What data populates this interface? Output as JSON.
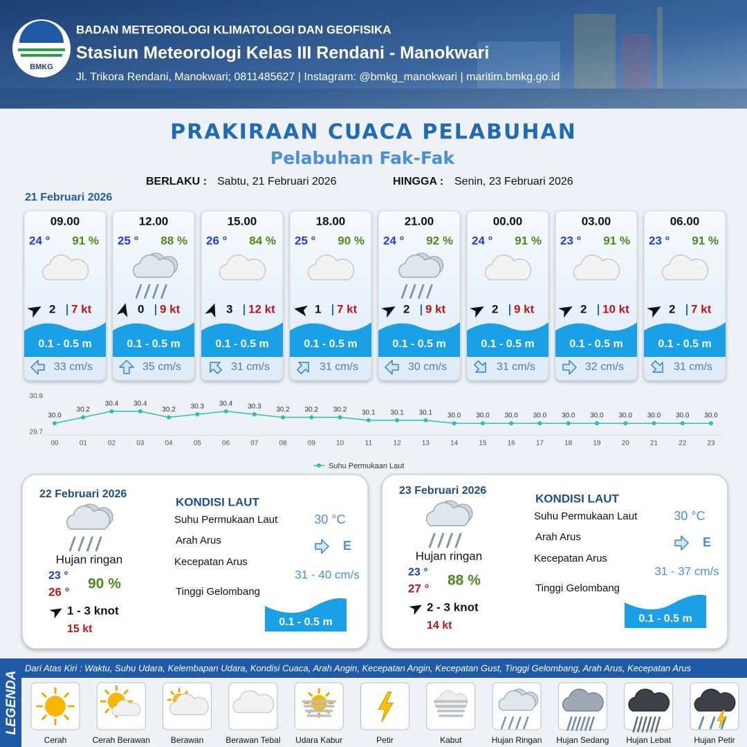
{
  "header": {
    "logo": "BMKG",
    "organization": "BADAN METEOROLOGI KLIMATOLOGI DAN GEOFISIKA",
    "station": "Stasiun Meteorologi Kelas III Rendani - Manokwari",
    "address": "Jl. Trikora Rendani, Manokwari; 0811485627 | Instagram: @bmkg_manokwari | maritim.bmkg.go.id"
  },
  "title": "PRAKIRAAN CUACA PELABUHAN",
  "subtitle": "Pelabuhan Fak-Fak",
  "validity": {
    "from_label": "BERLAKU :",
    "from": "Sabtu, 21 Februari 2026",
    "to_label": "HINGGA :",
    "to": "Senin, 23 Februari 2026"
  },
  "day1_date": "21 Februari 2026",
  "forecasts": [
    {
      "time": "09.00",
      "temp": "24 °",
      "humidity": "91 %",
      "condition": "Berawan Tebal",
      "wind_dir": 60,
      "wind_speed": 2,
      "gust": "7 kt",
      "wave": "0.1 - 0.5 m",
      "current_dir": 270,
      "current_speed": "33 cm/s"
    },
    {
      "time": "12.00",
      "temp": "25 °",
      "humidity": "88 %",
      "condition": "Hujan Ringan",
      "wind_dir": 15,
      "wind_speed": 0,
      "gust": "9 kt",
      "wave": "0.1 - 0.5 m",
      "current_dir": 0,
      "current_speed": "35 cm/s"
    },
    {
      "time": "15.00",
      "temp": "26 °",
      "humidity": "84 %",
      "condition": "Berawan Tebal",
      "wind_dir": 20,
      "wind_speed": 3,
      "gust": "12 kt",
      "wave": "0.1 - 0.5 m",
      "current_dir": 315,
      "current_speed": "31 cm/s"
    },
    {
      "time": "18.00",
      "temp": "25 °",
      "humidity": "90 %",
      "condition": "Berawan Tebal",
      "wind_dir": 280,
      "wind_speed": 1,
      "gust": "7 kt",
      "wave": "0.1 - 0.5 m",
      "current_dir": 45,
      "current_speed": "31 cm/s"
    },
    {
      "time": "21.00",
      "temp": "24 °",
      "humidity": "92 %",
      "condition": "Hujan Ringan",
      "wind_dir": 60,
      "wind_speed": 2,
      "gust": "9 kt",
      "wave": "0.1 - 0.5 m",
      "current_dir": 270,
      "current_speed": "30 cm/s"
    },
    {
      "time": "00.00",
      "temp": "24 °",
      "humidity": "91 %",
      "condition": "Berawan Tebal",
      "wind_dir": 60,
      "wind_speed": 2,
      "gust": "9 kt",
      "wave": "0.1 - 0.5 m",
      "current_dir": 135,
      "current_speed": "31 cm/s"
    },
    {
      "time": "03.00",
      "temp": "23 °",
      "humidity": "91 %",
      "condition": "Berawan Tebal",
      "wind_dir": 60,
      "wind_speed": 2,
      "gust": "10 kt",
      "wave": "0.1 - 0.5 m",
      "current_dir": 90,
      "current_speed": "32 cm/s"
    },
    {
      "time": "06.00",
      "temp": "23 °",
      "humidity": "91 %",
      "condition": "Berawan Tebal",
      "wind_dir": 60,
      "wind_speed": 2,
      "gust": "7 kt",
      "wave": "0.1 - 0.5 m",
      "current_dir": 135,
      "current_speed": "31 cm/s"
    }
  ],
  "chart_data": {
    "type": "line",
    "categories": [
      "00",
      "01",
      "02",
      "03",
      "04",
      "05",
      "06",
      "07",
      "08",
      "09",
      "10",
      "11",
      "12",
      "13",
      "14",
      "15",
      "16",
      "17",
      "18",
      "19",
      "20",
      "21",
      "22",
      "23"
    ],
    "series": [
      {
        "name": "Suhu Permukaan Laut",
        "color": "#2bbfb0",
        "values": [
          30.0,
          30.2,
          30.4,
          30.4,
          30.2,
          30.3,
          30.4,
          30.3,
          30.2,
          30.2,
          30.2,
          30.1,
          30.1,
          30.1,
          30.0,
          30.0,
          30.0,
          30.0,
          30.0,
          30.0,
          30.0,
          30.0,
          30.0,
          30.0
        ],
        "value_labels": [
          "30.0",
          "30.2",
          "30.4",
          "30.4",
          "30.2",
          "30.3",
          "30.4",
          "30.3",
          "30.2",
          "30.2",
          "30.2",
          "30.1",
          "30.1",
          "30.1",
          "30.0",
          "30.0",
          "30.0",
          "30.0",
          "30.0",
          "30.0",
          "30.0",
          "30.0",
          "30.0",
          "30.0"
        ]
      }
    ],
    "ylim": [
      29.7,
      30.9
    ],
    "yticks": [
      29.7,
      30.9
    ],
    "legend": "bottom"
  },
  "days": [
    {
      "date": "22 Februari 2026",
      "condition_text": "Hujan ringan",
      "condition": "Hujan Ringan",
      "tmin": "23 °",
      "tmax": "26 °",
      "humidity": "90 %",
      "wind_dir": 60,
      "wind": "1  - 3 knot",
      "gust": "15 kt",
      "sea": {
        "title": "KONDISI LAUT",
        "sst_label": "Suhu Permukaan Laut",
        "current_dir_label": "Arah Arus",
        "current_speed_label": "Kecepatan Arus",
        "wave_label": "Tinggi Gelombang",
        "sst": "30 °C",
        "current_dir": 90,
        "current_dir_text": "E",
        "current_speed": "31  - 40 cm/s",
        "wave": "0.1 - 0.5 m"
      }
    },
    {
      "date": "23 Februari 2026",
      "condition_text": "Hujan ringan",
      "condition": "Hujan Ringan",
      "tmin": "23 °",
      "tmax": "27 °",
      "humidity": "88 %",
      "wind_dir": 60,
      "wind": "2  - 3 knot",
      "gust": "14 kt",
      "sea": {
        "title": "KONDISI LAUT",
        "sst_label": "Suhu Permukaan Laut",
        "current_dir_label": "Arah Arus",
        "current_speed_label": "Kecepatan Arus",
        "wave_label": "Tinggi Gelombang",
        "sst": "30 °C",
        "current_dir": 90,
        "current_dir_text": "E",
        "current_speed": "31  - 37 cm/s",
        "wave": "0.1 - 0.5 m"
      }
    }
  ],
  "legend": {
    "title": "LEGENDA",
    "description": "Dari Atas Kiri : Waktu, Suhu Udara, Kelembapan Udara, Kondisi Cuaca, Arah Angin, Kecepatan Angin, Kecepatan Gust, Tinggi Gelombang, Arah Arus, Kecepatan Arus",
    "items": [
      "Cerah",
      "Cerah Berawan",
      "Berawan",
      "Berawan Tebal",
      "Udara Kabur",
      "Petir",
      "Kabut",
      "Hujan Ringan",
      "Hujan Sedang",
      "Hujan Lebat",
      "Hujan Petir"
    ]
  }
}
